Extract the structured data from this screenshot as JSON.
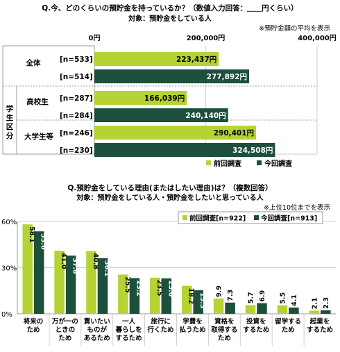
{
  "colors": {
    "previous": "#b5d334",
    "current": "#1d4f3c",
    "grid": "#cfcfcf",
    "axis": "#999999"
  },
  "chart_data": [
    {
      "type": "bar",
      "orientation": "horizontal",
      "title": "Q.今、どのくらいの預貯金を持っているか？（数値入力回答：＿＿円くらい）",
      "subtitle": "対象：預貯金をしている人",
      "note": "※預貯金額の平均を表示",
      "xlim": [
        0,
        400000
      ],
      "ticks": [
        {
          "value": 0,
          "label": "0円"
        },
        {
          "value": 200000,
          "label": "200,000円"
        },
        {
          "value": 400000,
          "label": "400,000円"
        }
      ],
      "side_label": "学生区分",
      "groups": [
        {
          "label": "全体",
          "bars": [
            {
              "series": "前回調査",
              "n": "[n=533]",
              "value": 223437,
              "label": "223,437円"
            },
            {
              "series": "今回調査",
              "n": "[n=514]",
              "value": 277892,
              "label": "277,892円"
            }
          ]
        },
        {
          "label": "高校生",
          "bars": [
            {
              "series": "前回調査",
              "n": "[n=287]",
              "value": 166039,
              "label": "166,039円"
            },
            {
              "series": "今回調査",
              "n": "[n=284]",
              "value": 240140,
              "label": "240,140円"
            }
          ]
        },
        {
          "label": "大学生等",
          "bars": [
            {
              "series": "前回調査",
              "n": "[n=246]",
              "value": 290401,
              "label": "290,401円"
            },
            {
              "series": "今回調査",
              "n": "[n=230]",
              "value": 324508,
              "label": "324,508円"
            }
          ]
        }
      ],
      "legend": [
        "前回調査",
        "今回調査"
      ]
    },
    {
      "type": "bar",
      "title": "Q.預貯金をしている理由(またはしたい理由)は？（複数回答）",
      "subtitle": "対象：預貯金をしている人・預貯金をしたいと思っている人",
      "note": "※上位10位までを表示",
      "ylim": [
        0,
        60
      ],
      "yticks": [
        {
          "value": 0,
          "label": "0%"
        },
        {
          "value": 30,
          "label": "30%"
        },
        {
          "value": 60,
          "label": "60%"
        }
      ],
      "categories": [
        [
          "将来の",
          "ため"
        ],
        [
          "万が一の",
          "ときの",
          "ため"
        ],
        [
          "買いたい",
          "ものが",
          "あるため"
        ],
        [
          "一人",
          "暮らしを",
          "するため"
        ],
        [
          "旅行に",
          "行くため"
        ],
        [
          "学費を",
          "払うため"
        ],
        [
          "資格を",
          "取得する",
          "ため"
        ],
        [
          "投資を",
          "するため"
        ],
        [
          "留学する",
          "ため"
        ],
        [
          "起業を",
          "するため"
        ]
      ],
      "series": [
        {
          "name": "前回調査",
          "n": "[n=922]",
          "values": [
            58.1,
            41.0,
            40.8,
            25.5,
            23.5,
            18.2,
            9.9,
            5.7,
            5.5,
            2.1
          ],
          "labels": [
            "58.1",
            "41.0",
            "40.8",
            "25.5",
            "23.5",
            "18.2",
            "9.9",
            "5.7",
            "5.5",
            "2.1"
          ]
        },
        {
          "name": "今回調査",
          "n": "[n=913]",
          "values": [
            53.6,
            37.8,
            36.1,
            23.2,
            23.0,
            15.3,
            7.3,
            6.9,
            4.1,
            2.3
          ],
          "labels": [
            "53.6",
            "37.8",
            "36.1",
            "23.2",
            "23.0",
            "15.3",
            "7.3",
            "6.9",
            "4.1",
            "2.3"
          ]
        }
      ]
    }
  ]
}
